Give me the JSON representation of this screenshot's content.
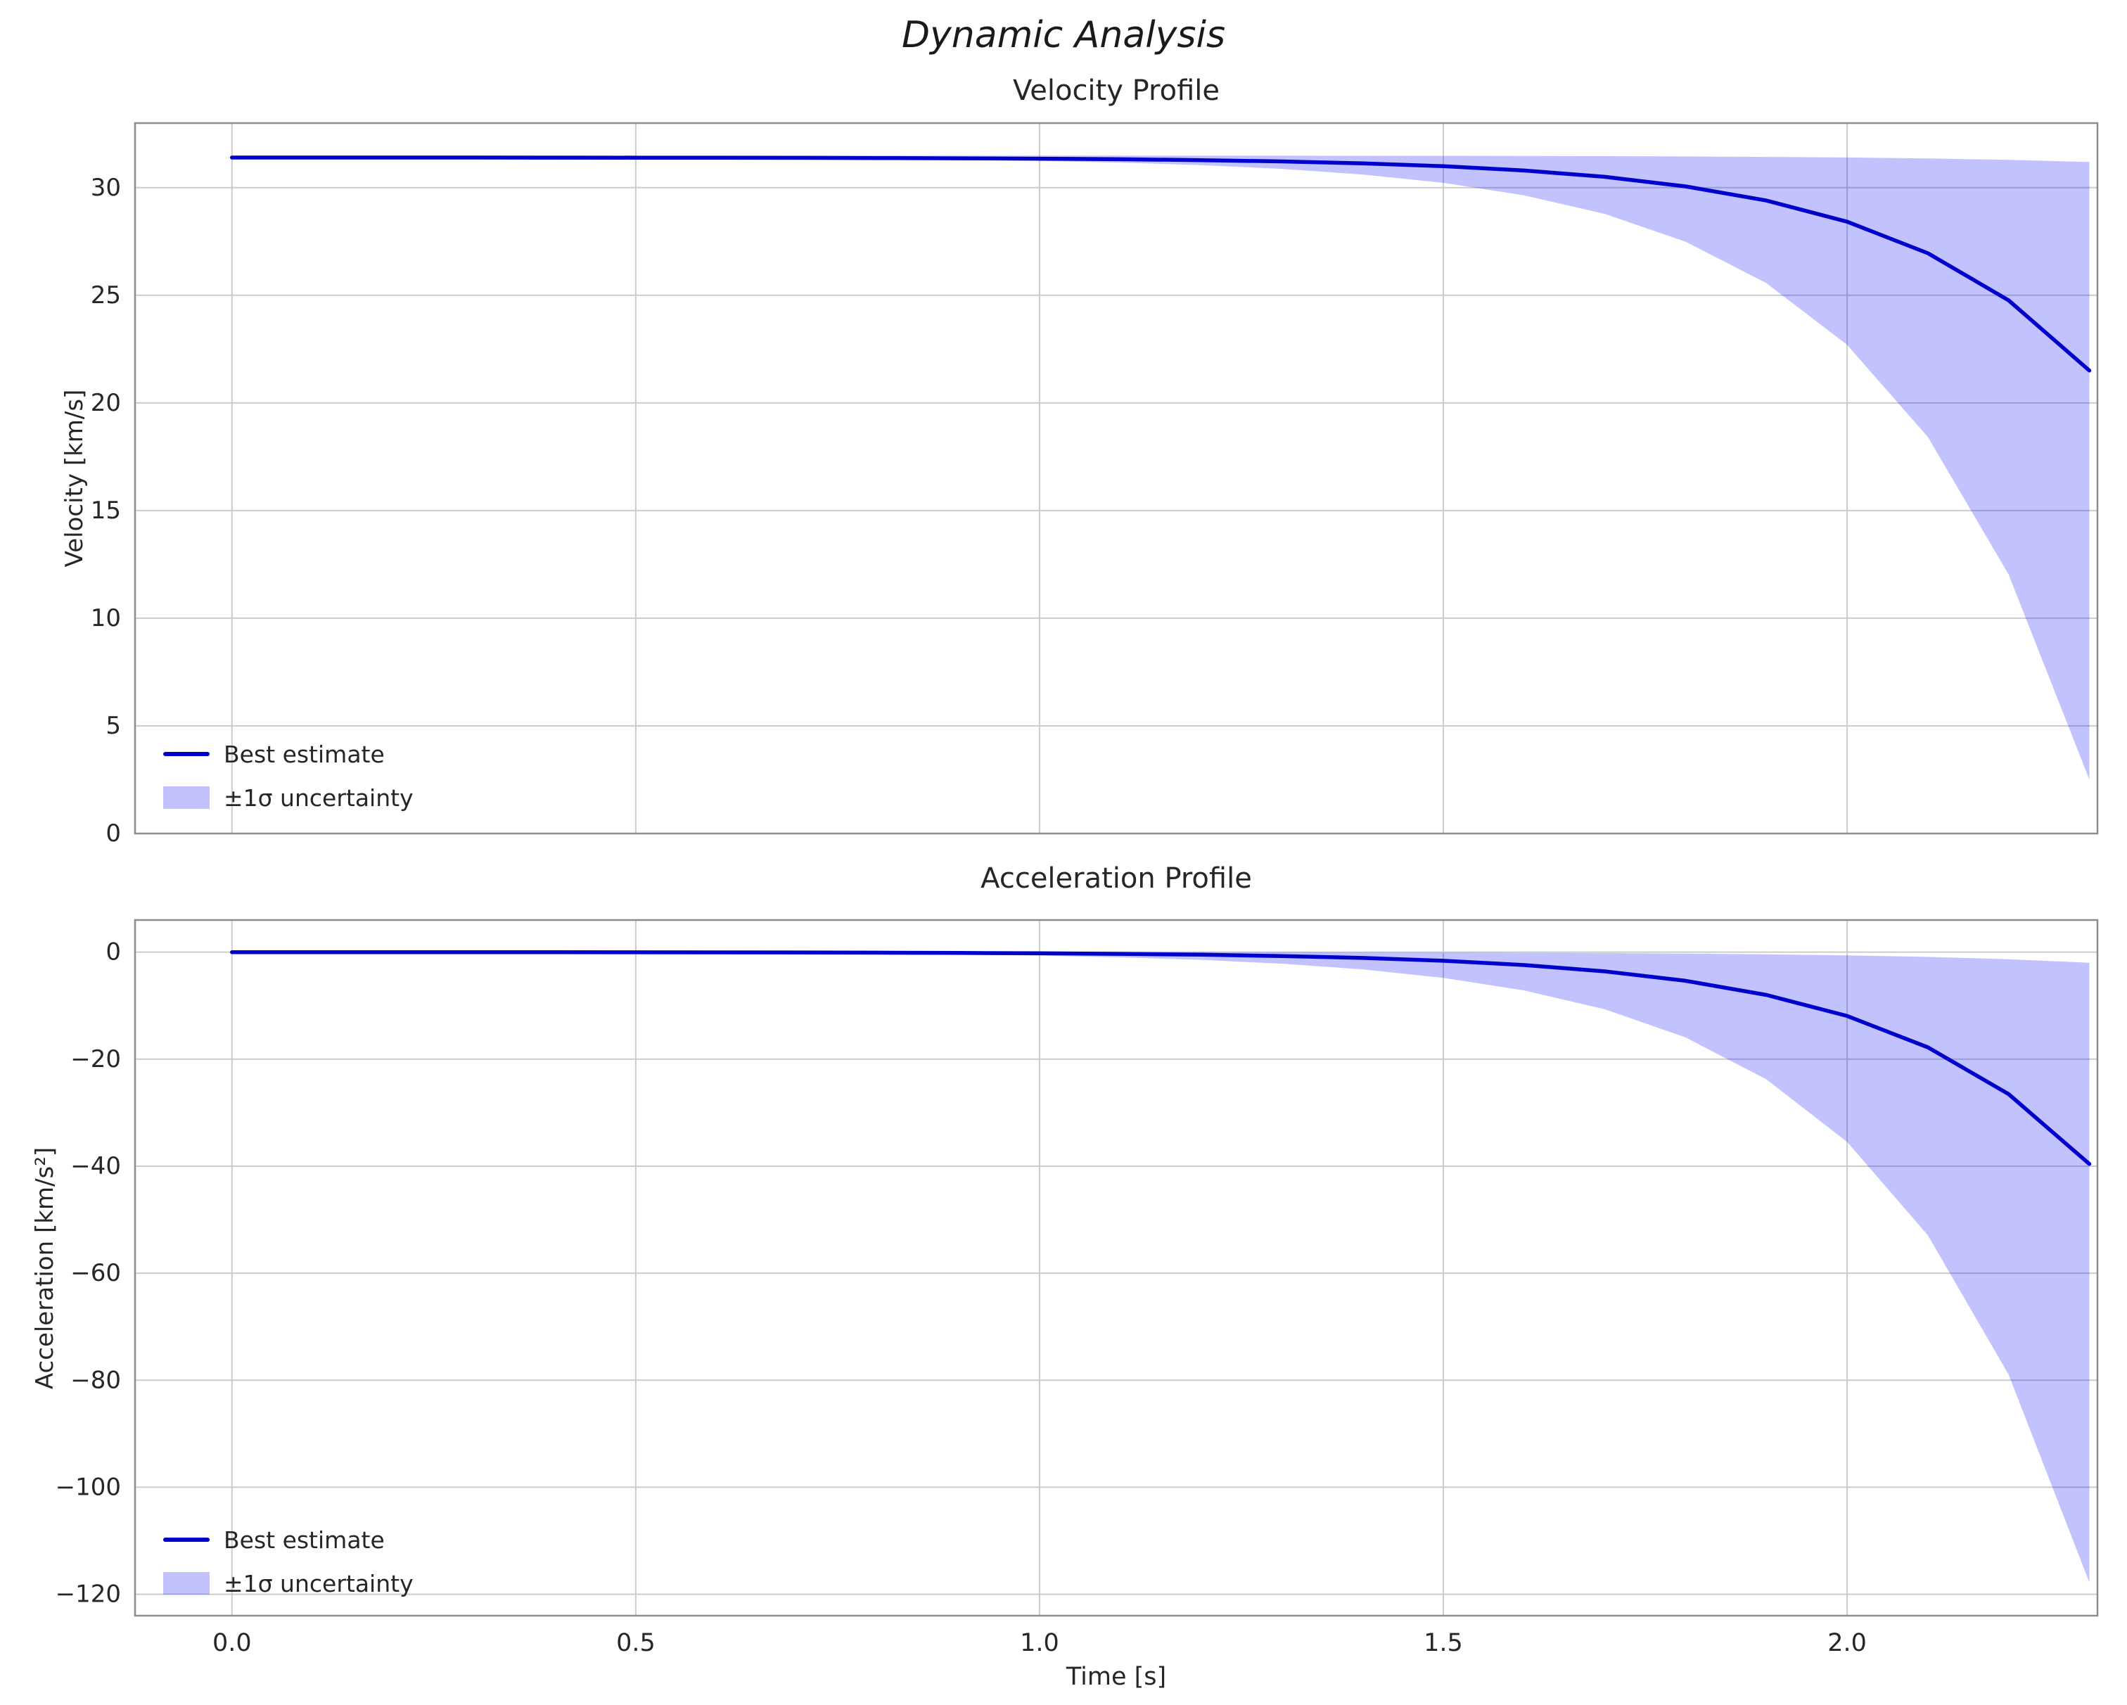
{
  "figure": {
    "suptitle": "Dynamic Analysis"
  },
  "chart_data": [
    {
      "type": "line",
      "name": "velocity",
      "title": "Velocity Profile",
      "ylabel": "Velocity [km/s]",
      "xlim": [
        -0.12,
        2.31
      ],
      "ylim": [
        0,
        33
      ],
      "xticks": [
        0,
        0.5,
        1.0,
        1.5,
        2.0
      ],
      "xtick_labels": [
        "0.0",
        "0.5",
        "1.0",
        "1.5",
        "2.0"
      ],
      "show_xtick_labels": false,
      "yticks": [
        0,
        5,
        10,
        15,
        20,
        25,
        30
      ],
      "ytick_labels": [
        "0",
        "5",
        "10",
        "15",
        "20",
        "25",
        "30"
      ],
      "grid": true,
      "legend": {
        "position": "lower left",
        "entries": [
          "Best estimate",
          "±1σ uncertainty"
        ]
      },
      "colors": {
        "line": "#0000cd",
        "band": "rgba(0,0,255,0.24)",
        "grid": "#cccccc",
        "spine": "#8c8c8c",
        "text": "#262626"
      },
      "x": [
        0.0,
        0.1,
        0.2,
        0.3,
        0.4,
        0.5,
        0.6,
        0.7,
        0.8,
        0.9,
        1.0,
        1.1,
        1.2,
        1.3,
        1.4,
        1.5,
        1.6,
        1.7,
        1.8,
        1.9,
        2.0,
        2.1,
        2.2,
        2.3
      ],
      "series": [
        {
          "name": "Best estimate",
          "values": [
            31.4,
            31.4,
            31.399,
            31.398,
            31.396,
            31.394,
            31.39,
            31.385,
            31.376,
            31.364,
            31.346,
            31.32,
            31.279,
            31.22,
            31.131,
            30.998,
            30.799,
            30.503,
            30.061,
            29.403,
            28.42,
            26.954,
            24.767,
            21.504
          ]
        }
      ],
      "band": {
        "name": "±1σ uncertainty",
        "upper": [
          31.49,
          31.49,
          31.49,
          31.49,
          31.49,
          31.49,
          31.49,
          31.49,
          31.489,
          31.489,
          31.488,
          31.488,
          31.486,
          31.485,
          31.482,
          31.478,
          31.472,
          31.463,
          31.45,
          31.43,
          31.401,
          31.357,
          31.291,
          31.193
        ],
        "lower": [
          31.4,
          31.399,
          31.396,
          31.393,
          31.388,
          31.381,
          31.371,
          31.355,
          31.331,
          31.296,
          31.243,
          31.165,
          31.048,
          30.874,
          30.613,
          30.225,
          29.646,
          28.781,
          27.492,
          25.568,
          22.698,
          18.417,
          12.031,
          2.503
        ]
      }
    },
    {
      "type": "line",
      "name": "acceleration",
      "title": "Acceleration Profile",
      "ylabel": "Acceleration [km/s²]",
      "xlabel": "Time [s]",
      "xlim": [
        -0.12,
        2.31
      ],
      "ylim": [
        -124,
        6
      ],
      "xticks": [
        0,
        0.5,
        1.0,
        1.5,
        2.0
      ],
      "xtick_labels": [
        "0.0",
        "0.5",
        "1.0",
        "1.5",
        "2.0"
      ],
      "show_xtick_labels": true,
      "yticks": [
        0,
        -20,
        -40,
        -60,
        -80,
        -100,
        -120
      ],
      "ytick_labels": [
        "0",
        "−20",
        "−40",
        "−60",
        "−80",
        "−100",
        "−120"
      ],
      "grid": true,
      "legend": {
        "position": "lower left",
        "entries": [
          "Best estimate",
          "±1σ uncertainty"
        ]
      },
      "colors": {
        "line": "#0000cd",
        "band": "rgba(0,0,255,0.24)",
        "grid": "#cccccc",
        "spine": "#8c8c8c",
        "text": "#262626"
      },
      "x": [
        0.0,
        0.1,
        0.2,
        0.3,
        0.4,
        0.5,
        0.6,
        0.7,
        0.8,
        0.9,
        1.0,
        1.1,
        1.2,
        1.3,
        1.4,
        1.5,
        1.6,
        1.7,
        1.8,
        1.9,
        2.0,
        2.1,
        2.2,
        2.3
      ],
      "series": [
        {
          "name": "Best estimate",
          "values": [
            -0.004,
            -0.006,
            -0.009,
            -0.013,
            -0.02,
            -0.03,
            -0.044,
            -0.066,
            -0.098,
            -0.146,
            -0.218,
            -0.326,
            -0.486,
            -0.725,
            -1.082,
            -1.614,
            -2.407,
            -3.591,
            -5.358,
            -7.993,
            -11.924,
            -17.788,
            -26.537,
            -39.589
          ]
        }
      ],
      "band": {
        "name": "±1σ uncertainty",
        "upper": [
          0.0,
          0.0,
          0.0,
          -0.001,
          -0.001,
          -0.001,
          -0.002,
          -0.003,
          -0.005,
          -0.007,
          -0.011,
          -0.016,
          -0.024,
          -0.036,
          -0.054,
          -0.081,
          -0.12,
          -0.18,
          -0.268,
          -0.4,
          -0.596,
          -0.889,
          -1.327,
          -1.979
        ],
        "lower": [
          -0.012,
          -0.018,
          -0.026,
          -0.04,
          -0.059,
          -0.088,
          -0.131,
          -0.196,
          -0.292,
          -0.436,
          -0.65,
          -0.969,
          -1.446,
          -2.157,
          -3.218,
          -4.801,
          -7.162,
          -10.684,
          -15.939,
          -23.779,
          -35.473,
          -52.92,
          -78.947,
          -117.776
        ]
      }
    }
  ]
}
